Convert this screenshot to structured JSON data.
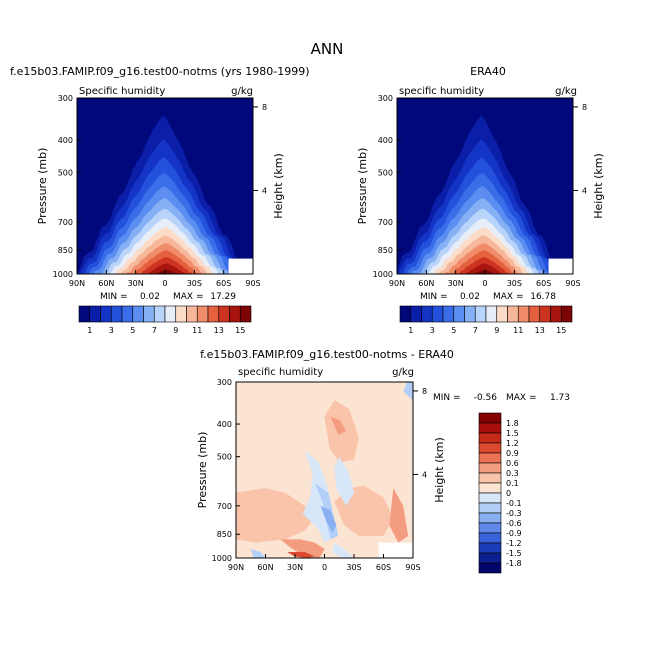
{
  "page_title": "ANN",
  "chart_data": [
    {
      "type": "heatmap",
      "title": "f.e15b03.FAMIP.f09_g16.test00-notms (yrs 1980-1999)",
      "variable": "Specific humidity",
      "units": "g/kg",
      "ylabel": "Pressure (mb)",
      "ylabel_right": "Height (km)",
      "x_ticks": [
        "90N",
        "60N",
        "30N",
        "0",
        "30S",
        "60S",
        "90S"
      ],
      "y_ticks": [
        300,
        400,
        500,
        700,
        850,
        1000
      ],
      "height_ticks": [
        8,
        4
      ],
      "min_label": "MIN =",
      "max_label": "MAX =",
      "min": "0.02",
      "max": "17.29",
      "colorbar_levels": [
        1,
        2,
        3,
        4,
        5,
        6,
        7,
        8,
        9,
        10,
        11,
        12,
        13,
        14,
        15
      ],
      "colorbar_labels": [
        "1",
        "3",
        "5",
        "7",
        "9",
        "11",
        "13",
        "15"
      ]
    },
    {
      "type": "heatmap",
      "title": "ERA40",
      "variable": "specific humidity",
      "units": "g/kg",
      "ylabel": "Pressure (mb)",
      "ylabel_right": "Height (km)",
      "x_ticks": [
        "90N",
        "60N",
        "30N",
        "0",
        "30S",
        "60S",
        "90S"
      ],
      "y_ticks": [
        300,
        400,
        500,
        700,
        850,
        1000
      ],
      "height_ticks": [
        8,
        4
      ],
      "min_label": "MIN =",
      "max_label": "MAX =",
      "min": "0.02",
      "max": "16.78",
      "colorbar_levels": [
        1,
        2,
        3,
        4,
        5,
        6,
        7,
        8,
        9,
        10,
        11,
        12,
        13,
        14,
        15
      ],
      "colorbar_labels": [
        "1",
        "3",
        "5",
        "7",
        "9",
        "11",
        "13",
        "15"
      ]
    },
    {
      "type": "heatmap",
      "title": "f.e15b03.FAMIP.f09_g16.test00-notms - ERA40",
      "variable": "specific humidity",
      "units": "g/kg",
      "ylabel": "Pressure (mb)",
      "ylabel_right": "Height (km)",
      "x_ticks": [
        "90N",
        "60N",
        "30N",
        "0",
        "30S",
        "60S",
        "90S"
      ],
      "y_ticks": [
        300,
        400,
        500,
        700,
        850,
        1000
      ],
      "height_ticks": [
        8,
        4
      ],
      "min_label": "MIN =",
      "max_label": "MAX =",
      "min": "-0.56",
      "max": "1.73",
      "colorbar_levels": [
        1.8,
        1.5,
        1.2,
        0.9,
        0.6,
        0.3,
        0.1,
        0,
        -0.1,
        -0.3,
        -0.6,
        -0.9,
        -1.2,
        -1.5,
        -1.8
      ],
      "colorbar_labels": [
        "1.8",
        "1.5",
        "1.2",
        "0.9",
        "0.6",
        "0.3",
        "0.1",
        "0",
        "-0.1",
        "-0.3",
        "-0.6",
        "-0.9",
        "-1.2",
        "-1.5",
        "-1.8"
      ]
    }
  ],
  "colors": {
    "abs_scale": [
      "#00087c",
      "#0a1ea8",
      "#1434c6",
      "#2451dc",
      "#3a6ee8",
      "#5b8ef0",
      "#86b0f4",
      "#b9d4fa",
      "#e8eef8",
      "#fbdcc8",
      "#f7b79a",
      "#f08c6a",
      "#e4603f",
      "#cc3320",
      "#a8140e",
      "#7c0404"
    ],
    "diff_scale": [
      "#820000",
      "#a60e0a",
      "#c62a18",
      "#dc4a30",
      "#ec7456",
      "#f49c80",
      "#f9c4aa",
      "#fbe4d2",
      "#d8e6fa",
      "#b4cff7",
      "#8bb0f1",
      "#5f88e8",
      "#3a62d8",
      "#1c3cb8",
      "#0b1f8e",
      "#02066a"
    ]
  }
}
